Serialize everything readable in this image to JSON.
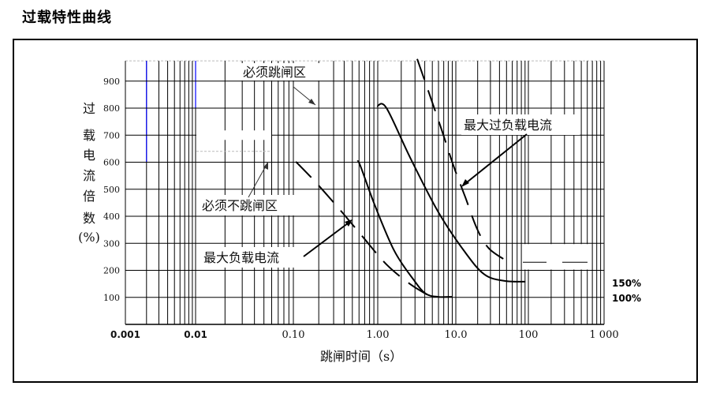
{
  "title": "过载特性曲线",
  "chart_data": {
    "type": "line",
    "title": "过载特性曲线",
    "xlabel": "跳闸时间（s）",
    "ylabel_chars": [
      "过",
      "载",
      "电",
      "流",
      "倍",
      "数",
      "(%)"
    ],
    "x_scale": "log",
    "xlim": [
      0.001,
      1000
    ],
    "ylim": [
      0,
      975
    ],
    "grid": true,
    "x_ticks": [
      {
        "value": 0.001,
        "label": "0.001"
      },
      {
        "value": 0.01,
        "label": "0.01"
      },
      {
        "value": 0.1,
        "label": "0.10"
      },
      {
        "value": 1,
        "label": "1.00"
      },
      {
        "value": 10,
        "label": "10.0"
      },
      {
        "value": 100,
        "label": "100"
      },
      {
        "value": 1000,
        "label": "1 000"
      }
    ],
    "y_ticks": [
      100,
      200,
      300,
      400,
      500,
      600,
      700,
      800,
      900
    ],
    "series": [
      {
        "id": "max-load",
        "style": "solid",
        "x": [
          0.57,
          0.62,
          0.92,
          1.63,
          2.9,
          4.1,
          5.9,
          8.9
        ],
        "y": [
          602,
          588,
          442,
          272,
          164,
          114,
          102,
          102
        ]
      },
      {
        "id": "max-overload",
        "style": "solid",
        "x": [
          0.98,
          1.29,
          2.6,
          5.9,
          13.5,
          25,
          47,
          91
        ],
        "y": [
          807,
          801,
          617,
          418,
          266,
          184,
          161,
          158
        ]
      },
      {
        "id": "must-not-trip-boundary",
        "style": "dashed",
        "x": [
          0.107,
          0.18,
          0.35,
          0.66,
          1.29,
          2.6,
          4.6
        ],
        "y": [
          602,
          529,
          427,
          325,
          222,
          149,
          105
        ]
      },
      {
        "id": "must-trip-boundary",
        "style": "dashed",
        "x": [
          3.2,
          4.6,
          6.6,
          9.3,
          13.5,
          19.6,
          28.6,
          53
        ],
        "y": [
          982,
          851,
          719,
          588,
          471,
          354,
          281,
          231
        ]
      }
    ],
    "annotations": [
      {
        "text": "必须跳闸区"
      },
      {
        "text": "必须不跳闸区"
      },
      {
        "text": "最大负载电流"
      },
      {
        "text": "最大过负载电流"
      }
    ],
    "right_labels": [
      "150%",
      "100%"
    ],
    "colors": {
      "grid": "#000000",
      "highlight_grid": "#0000ff",
      "curve": "#000000"
    }
  }
}
